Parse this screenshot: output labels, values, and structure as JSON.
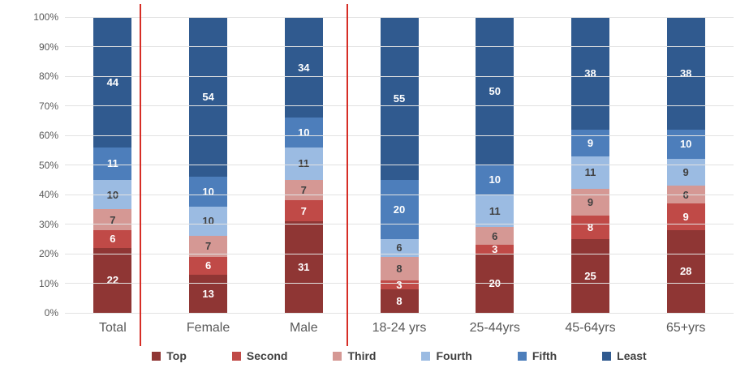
{
  "chart_data": {
    "type": "bar",
    "stacked": true,
    "percent_stacked": true,
    "title": "",
    "xlabel": "",
    "ylabel": "",
    "categories": [
      "Total",
      "Female",
      "Male",
      "18-24 yrs",
      "25-44yrs",
      "45-64yrs",
      "65+yrs"
    ],
    "series": [
      {
        "name": "Top",
        "color": "#8f3634",
        "label_color": "#ffffff",
        "values": [
          22,
          13,
          31,
          8,
          20,
          25,
          28
        ]
      },
      {
        "name": "Second",
        "color": "#c04a47",
        "label_color": "#ffffff",
        "values": [
          6,
          6,
          7,
          3,
          3,
          8,
          9
        ]
      },
      {
        "name": "Third",
        "color": "#d59894",
        "label_color": "#404040",
        "values": [
          7,
          7,
          7,
          8,
          6,
          9,
          6
        ]
      },
      {
        "name": "Fourth",
        "color": "#9bbbe2",
        "label_color": "#404040",
        "values": [
          10,
          10,
          11,
          6,
          11,
          11,
          9
        ]
      },
      {
        "name": "Fifth",
        "color": "#4d7ebb",
        "label_color": "#ffffff",
        "values": [
          11,
          10,
          10,
          20,
          10,
          9,
          10
        ]
      },
      {
        "name": "Least",
        "color": "#305a8f",
        "label_color": "#ffffff",
        "values": [
          44,
          54,
          34,
          55,
          50,
          38,
          38
        ]
      }
    ],
    "y_axis": {
      "min": 0,
      "max": 100,
      "step": 10,
      "tick_labels": [
        "0%",
        "10%",
        "20%",
        "30%",
        "40%",
        "50%",
        "60%",
        "70%",
        "80%",
        "90%",
        "100%"
      ]
    },
    "legend": {
      "position": "bottom",
      "entries": [
        "Top",
        "Second",
        "Third",
        "Fourth",
        "Fifth",
        "Least"
      ]
    },
    "separators": [
      {
        "after_category": "Total",
        "x_percent": 11.2,
        "color": "#d62e26"
      },
      {
        "after_category": "Male",
        "x_percent": 42.1,
        "color": "#d62e26"
      }
    ],
    "grid": true,
    "gridline_color": "#e2e2e2",
    "axis_text_color": "#595959",
    "legend_text_color": "#404040",
    "background_color": "#ffffff"
  }
}
